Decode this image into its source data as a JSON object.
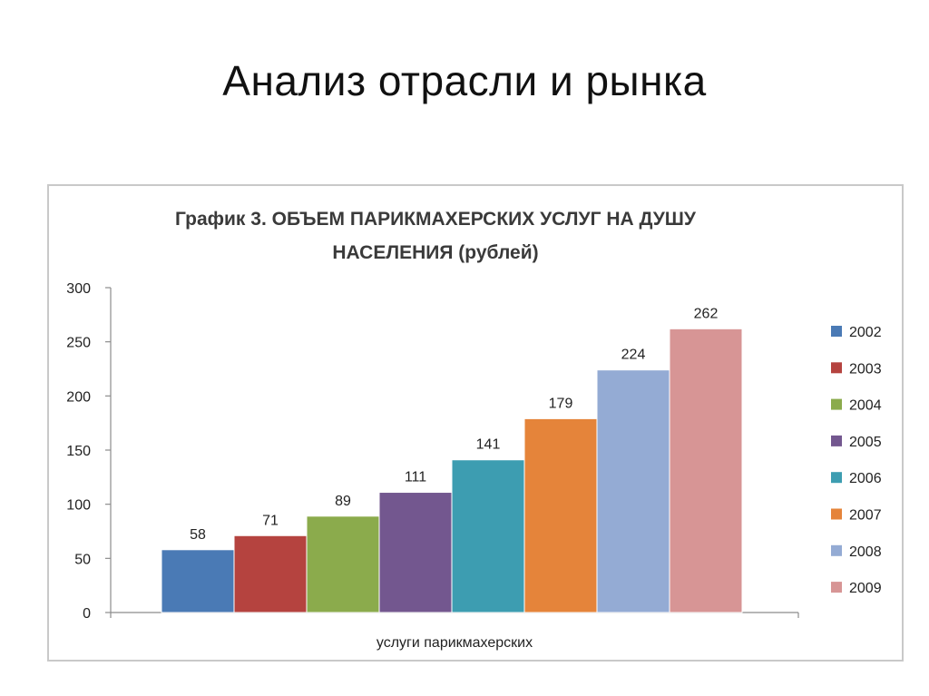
{
  "slide": {
    "title": "Анализ отрасли и рынка"
  },
  "chart_data": {
    "type": "bar",
    "title_line1": "График  3. ОБЪЕМ ПАРИКМАХЕРСКИХ УСЛУГ НА ДУШУ",
    "title_line2": "НАСЕЛЕНИЯ  (рублей)",
    "xlabel": "услуги парикмахерских",
    "ylabel": "",
    "ylim": [
      0,
      300
    ],
    "yticks": [
      0,
      50,
      100,
      150,
      200,
      250,
      300
    ],
    "grid": false,
    "legend_position": "right",
    "categories": [
      "услуги парикмахерских"
    ],
    "series": [
      {
        "name": "2002",
        "values": [
          58
        ],
        "color": "#4a7ab5"
      },
      {
        "name": "2003",
        "values": [
          71
        ],
        "color": "#b5433f"
      },
      {
        "name": "2004",
        "values": [
          89
        ],
        "color": "#8bab4c"
      },
      {
        "name": "2005",
        "values": [
          111
        ],
        "color": "#73578f"
      },
      {
        "name": "2006",
        "values": [
          141
        ],
        "color": "#3d9db1"
      },
      {
        "name": "2007",
        "values": [
          179
        ],
        "color": "#e5843a"
      },
      {
        "name": "2008",
        "values": [
          224
        ],
        "color": "#94abd4"
      },
      {
        "name": "2009",
        "values": [
          262
        ],
        "color": "#d79595"
      }
    ]
  }
}
